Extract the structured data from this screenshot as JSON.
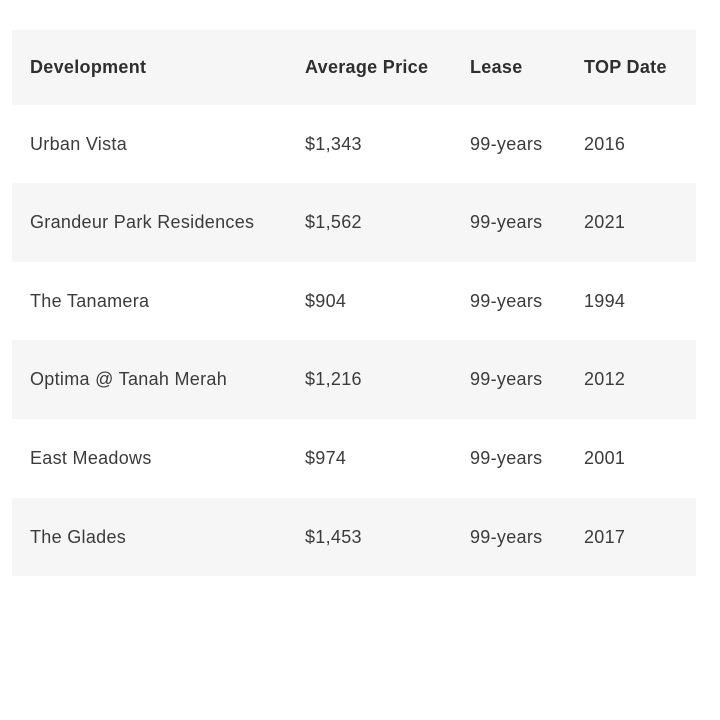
{
  "table": {
    "columns": [
      {
        "key": "development",
        "label": "Development"
      },
      {
        "key": "price",
        "label": "Average Price"
      },
      {
        "key": "lease",
        "label": "Lease"
      },
      {
        "key": "top",
        "label": "TOP Date"
      }
    ],
    "rows": [
      {
        "development": "Urban Vista",
        "price": "$1,343",
        "lease": "99-years",
        "top": "2016"
      },
      {
        "development": "Grandeur Park Residences",
        "price": "$1,562",
        "lease": "99-years",
        "top": "2021"
      },
      {
        "development": "The Tanamera",
        "price": "$904",
        "lease": "99-years",
        "top": "1994"
      },
      {
        "development": "Optima @ Tanah Merah",
        "price": "$1,216",
        "lease": "99-years",
        "top": "2012"
      },
      {
        "development": "East Meadows",
        "price": "$974",
        "lease": "99-years",
        "top": "2001"
      },
      {
        "development": "The Glades",
        "price": "$1,453",
        "lease": "99-years",
        "top": "2017"
      }
    ]
  },
  "chart_data": {
    "type": "table",
    "columns": [
      "Development",
      "Average Price",
      "Lease",
      "TOP Date"
    ],
    "rows": [
      [
        "Urban Vista",
        "$1,343",
        "99-years",
        "2016"
      ],
      [
        "Grandeur Park Residences",
        "$1,562",
        "99-years",
        "2021"
      ],
      [
        "The Tanamera",
        "$904",
        "99-years",
        "1994"
      ],
      [
        "Optima @ Tanah Merah",
        "$1,216",
        "99-years",
        "2012"
      ],
      [
        "East Meadows",
        "$974",
        "99-years",
        "2001"
      ],
      [
        "The Glades",
        "$1,453",
        "99-years",
        "2017"
      ]
    ],
    "title": "",
    "layout_hints": {
      "stripe_color": "#f6f6f6",
      "header_background": "#f6f6f6",
      "text_color": "#3b3b3b",
      "borders": "none"
    }
  }
}
